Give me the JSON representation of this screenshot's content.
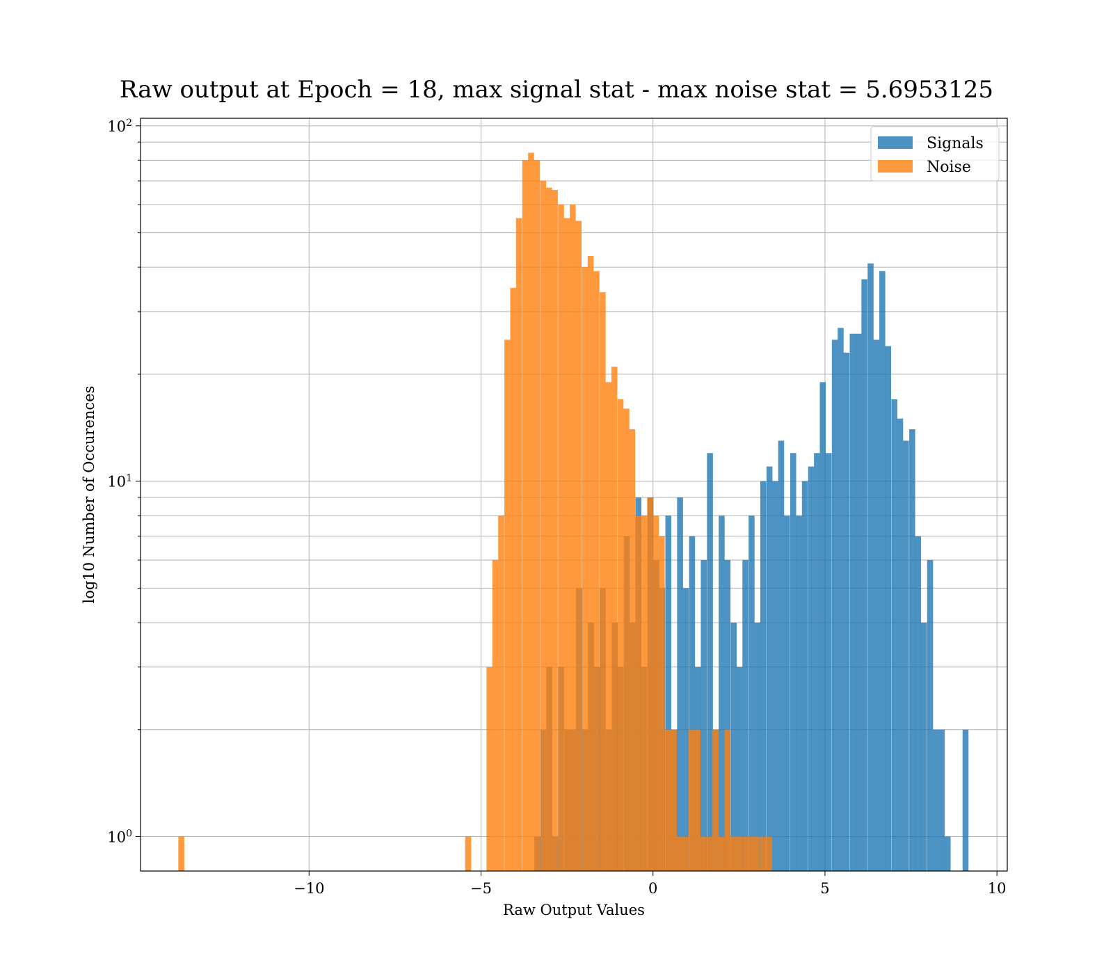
{
  "chart_data": {
    "type": "bar",
    "title": "Raw output at Epoch = 18, max signal stat - max noise stat = 5.6953125",
    "xlabel": "Raw Output Values",
    "ylabel": "log10 Number of Occurences",
    "xlim": [
      -14.9,
      10.3
    ],
    "ylim": [
      0.8,
      105
    ],
    "yscale": "log",
    "grid": true,
    "legend_position": "top-right",
    "x_ticks": [
      {
        "value": -10,
        "label": "−10"
      },
      {
        "value": -5,
        "label": "−5"
      },
      {
        "value": 0,
        "label": "0"
      },
      {
        "value": 5,
        "label": "5"
      },
      {
        "value": 10,
        "label": "10"
      }
    ],
    "y_ticks": [
      {
        "value": 1,
        "base": "10",
        "exp": "0"
      },
      {
        "value": 10,
        "base": "10",
        "exp": "1"
      },
      {
        "value": 100,
        "base": "10",
        "exp": "2"
      }
    ],
    "series": [
      {
        "name": "Signals",
        "color": "#1f77b4",
        "opacity": 0.8,
        "bin_width": 0.1728,
        "bins": [
          [
            -3.45,
            1
          ],
          [
            -3.28,
            2
          ],
          [
            -3.1,
            3
          ],
          [
            -2.93,
            1
          ],
          [
            -2.76,
            3
          ],
          [
            -2.58,
            2
          ],
          [
            -2.41,
            2
          ],
          [
            -2.24,
            5
          ],
          [
            -2.06,
            2
          ],
          [
            -1.89,
            4
          ],
          [
            -1.72,
            3
          ],
          [
            -1.55,
            5
          ],
          [
            -1.37,
            2
          ],
          [
            -1.2,
            4
          ],
          [
            -1.03,
            3
          ],
          [
            -0.85,
            7
          ],
          [
            -0.68,
            4
          ],
          [
            -0.51,
            9
          ],
          [
            -0.34,
            3
          ],
          [
            -0.16,
            9
          ],
          [
            0.01,
            6
          ],
          [
            0.18,
            5
          ],
          [
            0.36,
            8
          ],
          [
            0.53,
            2
          ],
          [
            0.7,
            9
          ],
          [
            0.87,
            5
          ],
          [
            1.05,
            7
          ],
          [
            1.22,
            3
          ],
          [
            1.39,
            6
          ],
          [
            1.57,
            12
          ],
          [
            1.74,
            2
          ],
          [
            1.91,
            8
          ],
          [
            2.08,
            6
          ],
          [
            2.26,
            4
          ],
          [
            2.43,
            3
          ],
          [
            2.6,
            6
          ],
          [
            2.78,
            8
          ],
          [
            2.95,
            4
          ],
          [
            3.12,
            10
          ],
          [
            3.3,
            11
          ],
          [
            3.47,
            10
          ],
          [
            3.64,
            13
          ],
          [
            3.81,
            8
          ],
          [
            3.99,
            12
          ],
          [
            4.16,
            8
          ],
          [
            4.33,
            10
          ],
          [
            4.51,
            11
          ],
          [
            4.68,
            12
          ],
          [
            4.85,
            19
          ],
          [
            5.02,
            12
          ],
          [
            5.2,
            25
          ],
          [
            5.37,
            27
          ],
          [
            5.54,
            23
          ],
          [
            5.72,
            26
          ],
          [
            5.89,
            26
          ],
          [
            6.06,
            37
          ],
          [
            6.24,
            41
          ],
          [
            6.41,
            25
          ],
          [
            6.58,
            39
          ],
          [
            6.75,
            24
          ],
          [
            6.93,
            17
          ],
          [
            7.1,
            15
          ],
          [
            7.27,
            13
          ],
          [
            7.45,
            14
          ],
          [
            7.62,
            7
          ],
          [
            7.79,
            4
          ],
          [
            7.97,
            6
          ],
          [
            8.14,
            2
          ],
          [
            8.31,
            2
          ],
          [
            8.48,
            1
          ],
          [
            9.0,
            2
          ]
        ]
      },
      {
        "name": "Noise",
        "color": "#ff7f0e",
        "opacity": 0.8,
        "bin_width": 0.1728,
        "bins": [
          [
            -13.8,
            1
          ],
          [
            -5.46,
            1
          ],
          [
            -4.84,
            3
          ],
          [
            -4.67,
            6
          ],
          [
            -4.5,
            8
          ],
          [
            -4.32,
            25
          ],
          [
            -4.15,
            35
          ],
          [
            -3.98,
            55
          ],
          [
            -3.8,
            80
          ],
          [
            -3.63,
            84
          ],
          [
            -3.46,
            80
          ],
          [
            -3.28,
            70
          ],
          [
            -3.11,
            67
          ],
          [
            -2.94,
            66
          ],
          [
            -2.76,
            60
          ],
          [
            -2.59,
            55
          ],
          [
            -2.42,
            60
          ],
          [
            -2.25,
            54
          ],
          [
            -2.07,
            40
          ],
          [
            -1.9,
            43
          ],
          [
            -1.73,
            39
          ],
          [
            -1.55,
            34
          ],
          [
            -1.38,
            19
          ],
          [
            -1.21,
            21
          ],
          [
            -1.03,
            17
          ],
          [
            -0.86,
            16
          ],
          [
            -0.69,
            14
          ],
          [
            -0.52,
            8
          ],
          [
            -0.34,
            8
          ],
          [
            -0.17,
            9
          ],
          [
            0.0,
            8
          ],
          [
            0.17,
            7
          ],
          [
            0.35,
            2
          ],
          [
            0.52,
            2
          ],
          [
            0.69,
            1
          ],
          [
            0.86,
            1
          ],
          [
            1.04,
            2
          ],
          [
            1.21,
            2
          ],
          [
            1.38,
            1
          ],
          [
            1.56,
            1
          ],
          [
            1.73,
            2
          ],
          [
            1.9,
            1
          ],
          [
            2.08,
            2
          ],
          [
            2.25,
            1
          ],
          [
            2.42,
            1
          ],
          [
            2.6,
            1
          ],
          [
            2.77,
            1
          ],
          [
            2.94,
            1
          ],
          [
            3.12,
            1
          ],
          [
            3.29,
            1
          ]
        ]
      }
    ]
  }
}
